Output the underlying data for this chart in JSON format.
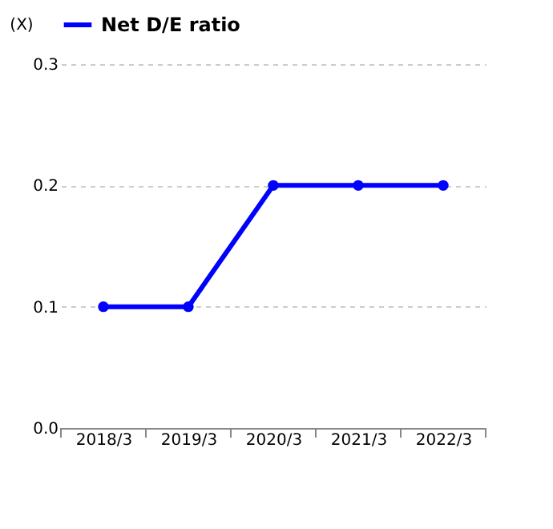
{
  "chart_data": {
    "type": "line",
    "ylabel": "(X)",
    "categories": [
      "2018/3",
      "2019/3",
      "2020/3",
      "2021/3",
      "2022/3"
    ],
    "series": [
      {
        "name": "Net D/E ratio",
        "color": "#0000ff",
        "values": [
          0.1,
          0.1,
          0.2,
          0.2,
          0.2
        ]
      }
    ],
    "ylim": [
      0,
      0.3
    ],
    "yticks": [
      {
        "value": 0,
        "label": "0.0"
      },
      {
        "value": 0.1,
        "label": "0.1"
      },
      {
        "value": 0.2,
        "label": "0.2"
      },
      {
        "value": 0.3,
        "label": "0.3"
      }
    ],
    "grid": "y",
    "legend": "top",
    "marker": "circle",
    "line_style": "solid"
  }
}
